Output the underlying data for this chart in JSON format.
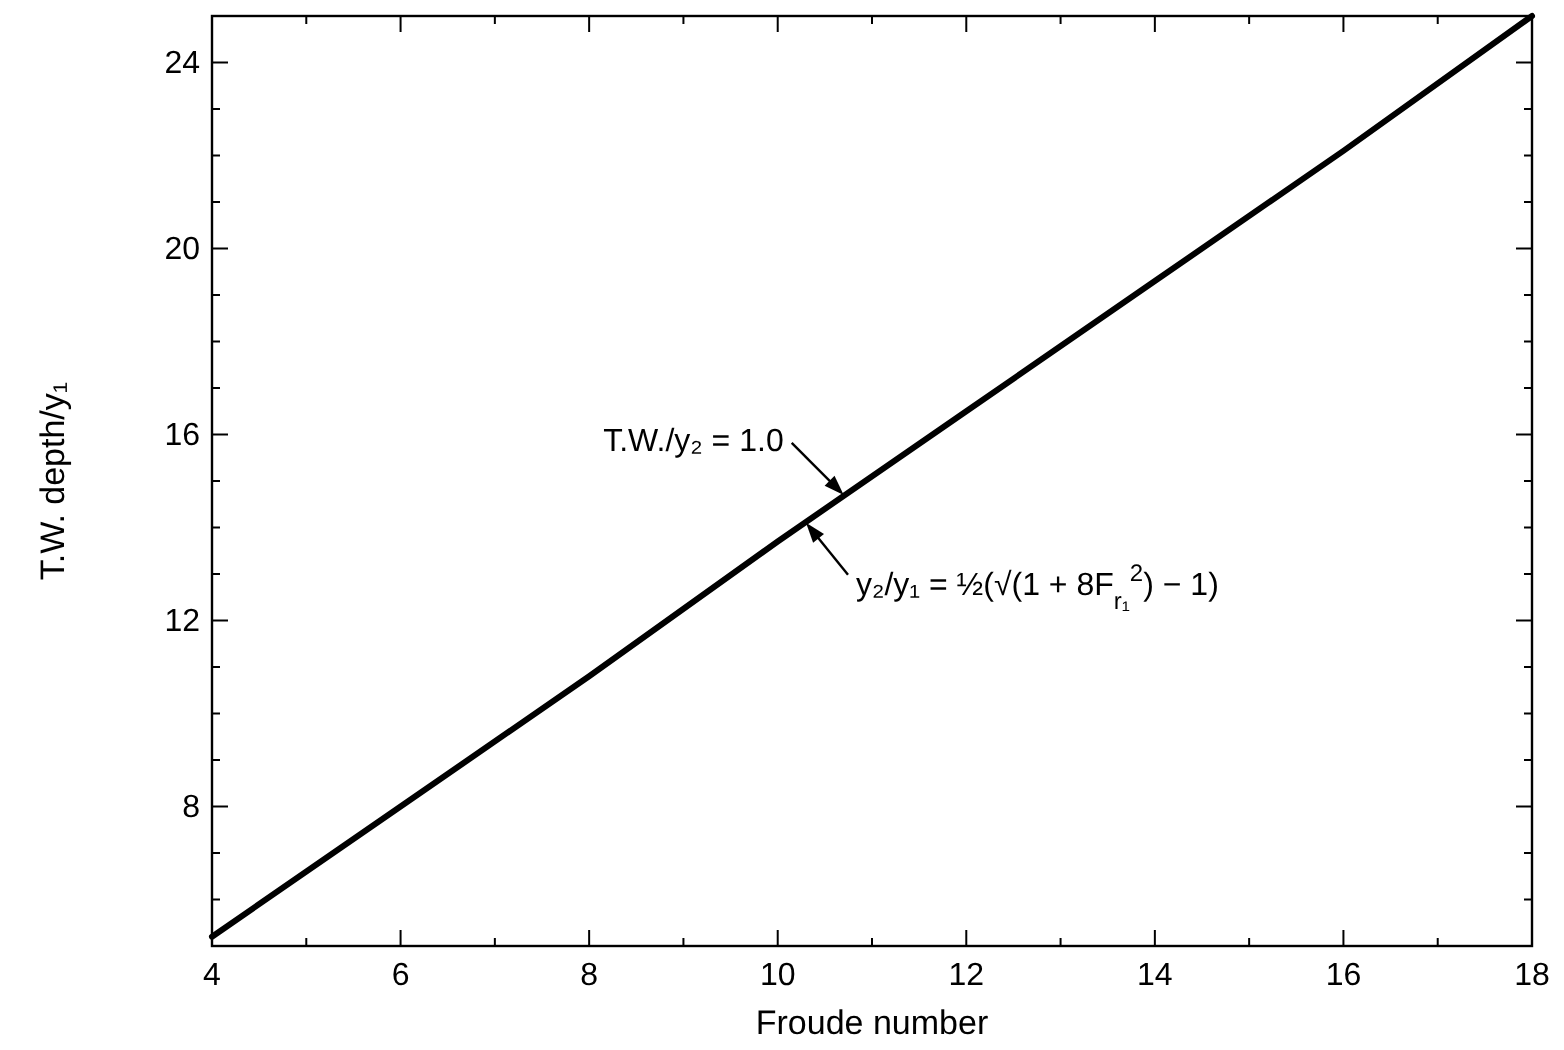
{
  "chart_data": {
    "type": "line",
    "xlabel": "Froude number",
    "ylabel": "T.W. depth/y₁",
    "x": [
      4,
      6,
      8,
      10,
      12,
      14,
      16,
      18
    ],
    "series": [
      {
        "color": "#000000",
        "values": [
          5.2,
          8.0,
          10.8,
          13.7,
          16.5,
          19.3,
          22.1,
          25.0
        ]
      }
    ],
    "xlim": [
      4,
      18
    ],
    "ylim": [
      5,
      25
    ],
    "xticks": [
      4,
      6,
      8,
      10,
      12,
      14,
      16,
      18
    ],
    "yticks": [
      8,
      12,
      16,
      20,
      24
    ],
    "grid": false,
    "marker": "none",
    "line_style": "solid",
    "annotations": [
      {
        "text": "T.W./y₂ = 1.0",
        "x": 10.7,
        "y": 14.7
      },
      {
        "text": "y₂/y₁ = ½(√(1 + 8F$_{r₁}$$^{2}$) − 1)",
        "x": 10.3,
        "y": 14.1
      }
    ]
  }
}
